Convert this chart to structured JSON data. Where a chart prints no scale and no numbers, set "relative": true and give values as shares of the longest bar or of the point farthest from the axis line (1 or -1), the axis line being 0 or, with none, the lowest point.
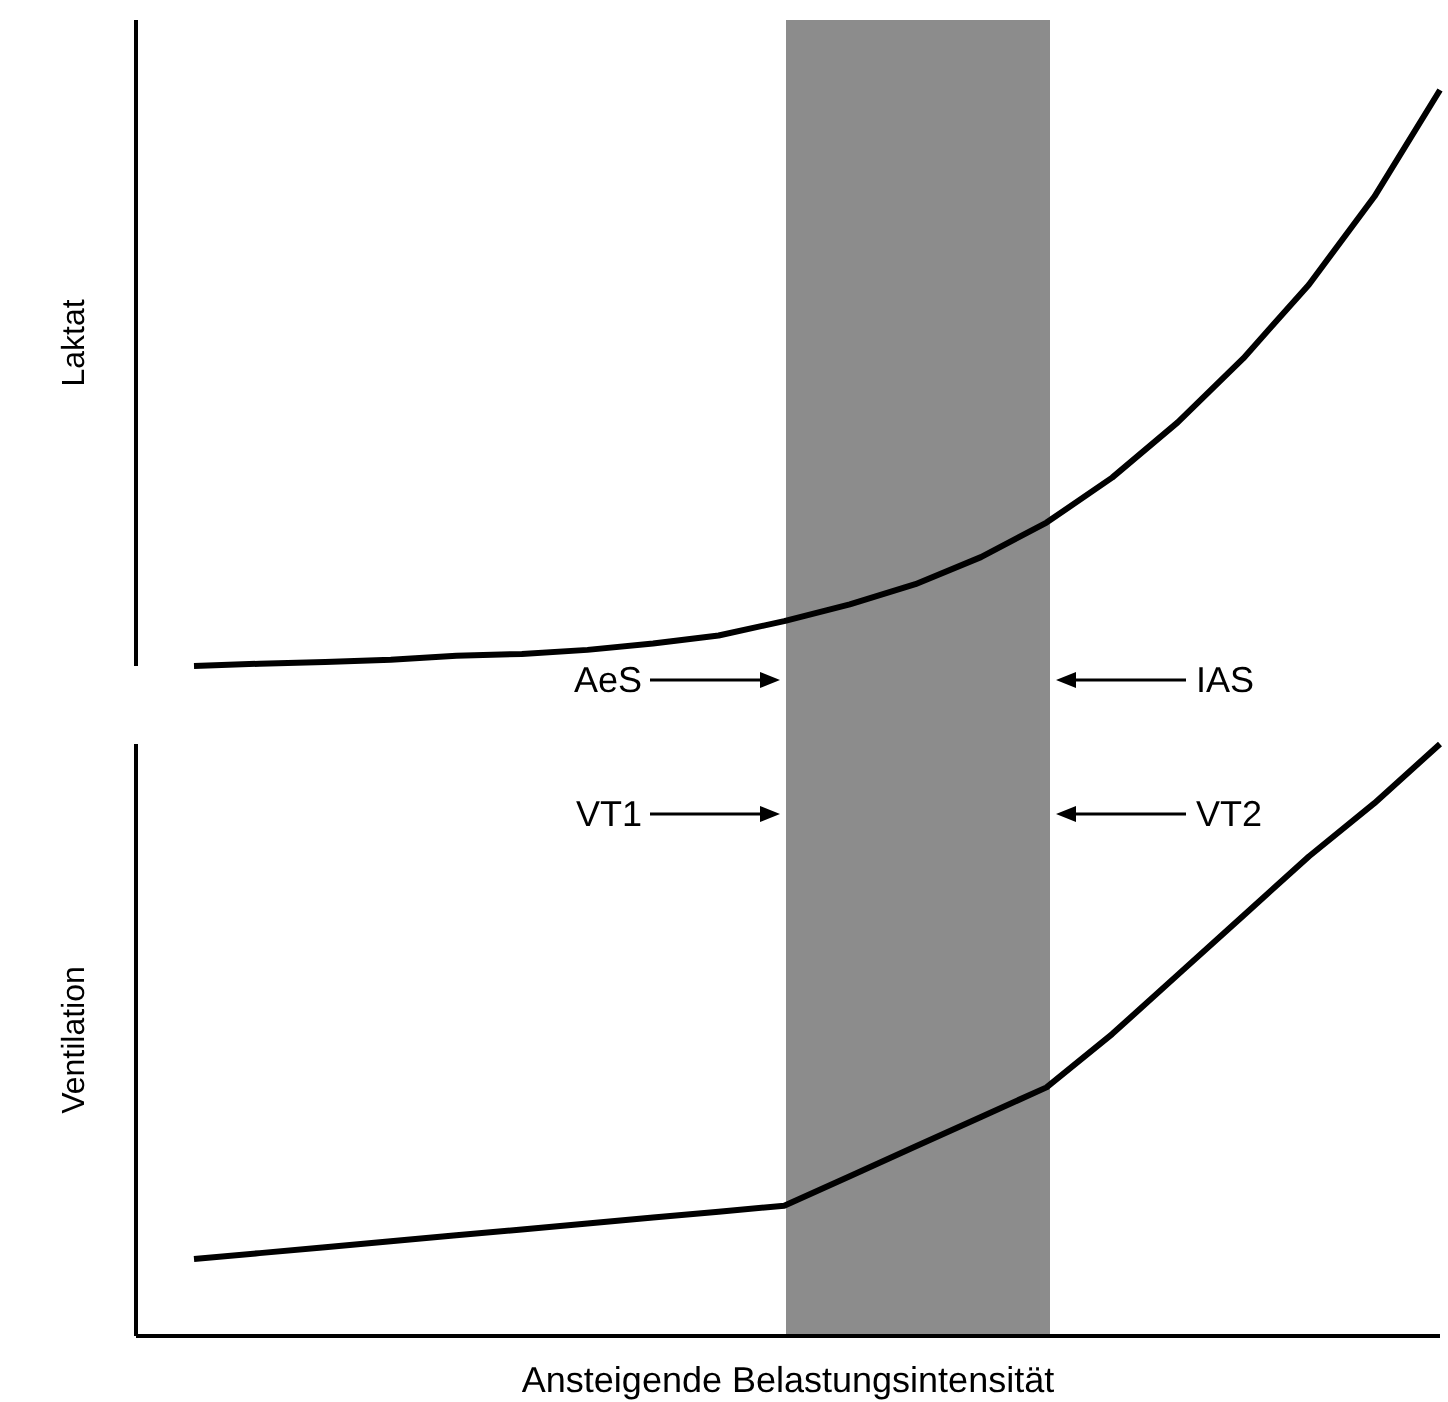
{
  "chart_data": [
    {
      "type": "line",
      "ylabel": "Laktat",
      "relative": true,
      "categories": [
        null,
        null,
        null,
        null,
        null,
        null,
        null,
        null,
        null,
        null,
        null,
        null,
        null,
        null,
        null,
        null,
        null,
        null,
        null,
        null
      ],
      "series": [
        {
          "color": "#000000",
          "values": [
            0,
            0.004,
            0.007,
            0.011,
            0.018,
            0.021,
            0.028,
            0.039,
            0.053,
            0.078,
            0.107,
            0.142,
            0.189,
            0.249,
            0.327,
            0.423,
            0.534,
            0.662,
            0.815,
            1
          ]
        }
      ],
      "annotations": [
        "AeS",
        "IAS"
      ]
    },
    {
      "type": "line",
      "ylabel": "Ventilation",
      "xlabel": "Ansteigende Belastungsintensität",
      "relative": true,
      "categories": [
        null,
        null,
        null,
        null,
        null,
        null,
        null,
        null,
        null,
        null,
        null,
        null,
        null,
        null,
        null,
        null,
        null,
        null,
        null,
        null
      ],
      "series": [
        {
          "color": "#000000",
          "values": [
            0.13,
            0.14,
            0.15,
            0.16,
            0.17,
            0.18,
            0.19,
            0.2,
            0.21,
            0.22,
            0.27,
            0.32,
            0.37,
            0.42,
            0.51,
            0.61,
            0.71,
            0.81,
            0.9,
            1
          ]
        }
      ],
      "annotations": [
        "VT1",
        "VT2"
      ]
    }
  ]
}
